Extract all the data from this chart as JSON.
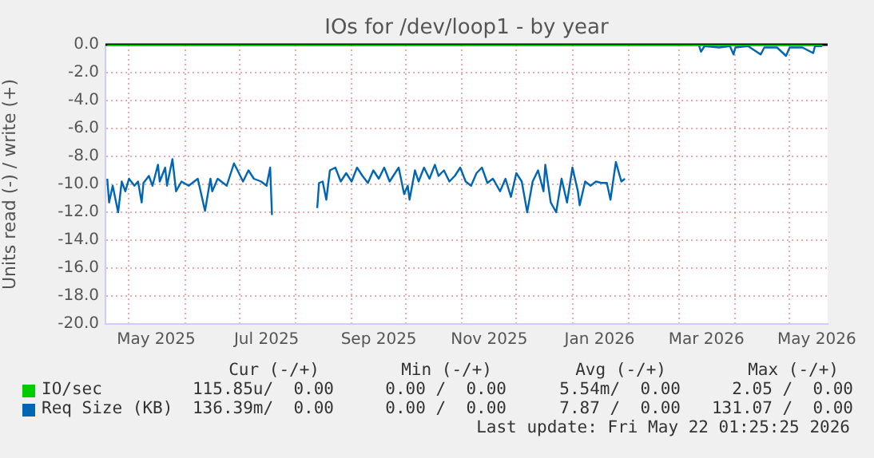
{
  "chart_data": {
    "type": "line",
    "title": "IOs for /dev/loop1 - by year",
    "ylabel": "Units read (-) / write (+)",
    "xlim": [
      "2025-04-18",
      "2026-05-22"
    ],
    "xticks": [
      {
        "value": "2025-05-01",
        "label": null
      },
      {
        "value": "2025-05-16",
        "label": "May 2025"
      },
      {
        "value": "2025-06-01",
        "label": null
      },
      {
        "value": "2025-07-01",
        "label": null
      },
      {
        "value": "2025-07-16",
        "label": "Jul 2025"
      },
      {
        "value": "2025-08-01",
        "label": null
      },
      {
        "value": "2025-09-01",
        "label": null
      },
      {
        "value": "2025-09-16",
        "label": "Sep 2025"
      },
      {
        "value": "2025-10-01",
        "label": null
      },
      {
        "value": "2025-11-01",
        "label": null
      },
      {
        "value": "2025-11-16",
        "label": "Nov 2025"
      },
      {
        "value": "2025-12-01",
        "label": null
      },
      {
        "value": "2026-01-01",
        "label": null
      },
      {
        "value": "2026-01-16",
        "label": "Jan 2026"
      },
      {
        "value": "2026-02-01",
        "label": null
      },
      {
        "value": "2026-03-01",
        "label": null
      },
      {
        "value": "2026-03-16",
        "label": "Mar 2026"
      },
      {
        "value": "2026-04-01",
        "label": null
      },
      {
        "value": "2026-05-01",
        "label": null
      },
      {
        "value": "2026-05-16",
        "label": "May 2026"
      }
    ],
    "ylim": [
      -20,
      0
    ],
    "yticks": [
      {
        "value": 0,
        "label": "0.0"
      },
      {
        "value": -2,
        "label": "-2.0"
      },
      {
        "value": -4,
        "label": "-4.0"
      },
      {
        "value": -6,
        "label": "-6.0"
      },
      {
        "value": -8,
        "label": "-8.0"
      },
      {
        "value": -10,
        "label": "-10.0"
      },
      {
        "value": -12,
        "label": "-12.0"
      },
      {
        "value": -14,
        "label": "-14.0"
      },
      {
        "value": -16,
        "label": "-16.0"
      },
      {
        "value": -18,
        "label": "-18.0"
      },
      {
        "value": -20,
        "label": "-20.0"
      }
    ],
    "grid": true,
    "legend": "bottom",
    "marker": "none",
    "line_style": "solid",
    "ref_lines": [
      {
        "axis": "y",
        "value": 0,
        "color": "#000000"
      }
    ],
    "series": [
      {
        "name": "IO/sec",
        "color": "#00cc00",
        "x": [
          "2025-04-19",
          "2026-05-19"
        ],
        "values": [
          0,
          0
        ]
      },
      {
        "name": "Req Size (KB)",
        "color": "#0066b3",
        "x": [
          "2025-04-19",
          "2025-04-20",
          "2025-04-22",
          "2025-04-25",
          "2025-04-27",
          "2025-04-29",
          "2025-05-01",
          "2025-05-04",
          "2025-05-06",
          "2025-05-08",
          "2025-05-09",
          "2025-05-12",
          "2025-05-14",
          "2025-05-17",
          "2025-05-18",
          "2025-05-21",
          "2025-05-22",
          "2025-05-25",
          "2025-05-27",
          "2025-05-30",
          "2025-06-03",
          "2025-06-08",
          "2025-06-12",
          "2025-06-15",
          "2025-06-16",
          "2025-06-19",
          "2025-06-24",
          "2025-06-28",
          "2025-06-30",
          "2025-07-03",
          "2025-07-06",
          "2025-07-09",
          "2025-07-13",
          "2025-07-16",
          "2025-07-18",
          "2025-07-19",
          "2025-08-01",
          "2025-08-13",
          "2025-08-14",
          "2025-08-16",
          "2025-08-18",
          "2025-08-20",
          "2025-08-23",
          "2025-08-26",
          "2025-08-29",
          "2025-09-01",
          "2025-09-04",
          "2025-09-07",
          "2025-09-10",
          "2025-09-13",
          "2025-09-16",
          "2025-09-19",
          "2025-09-22",
          "2025-09-25",
          "2025-09-27",
          "2025-09-30",
          "2025-10-02",
          "2025-10-03",
          "2025-10-06",
          "2025-10-08",
          "2025-10-11",
          "2025-10-14",
          "2025-10-17",
          "2025-10-19",
          "2025-10-22",
          "2025-10-25",
          "2025-10-28",
          "2025-10-31",
          "2025-11-03",
          "2025-11-06",
          "2025-11-09",
          "2025-11-12",
          "2025-11-15",
          "2025-11-18",
          "2025-11-19",
          "2025-11-22",
          "2025-11-25",
          "2025-11-28",
          "2025-12-01",
          "2025-12-04",
          "2025-12-07",
          "2025-12-10",
          "2025-12-13",
          "2025-12-16",
          "2025-12-17",
          "2025-12-20",
          "2025-12-23",
          "2025-12-26",
          "2025-12-29",
          "2026-01-01",
          "2026-01-04",
          "2026-01-05",
          "2026-01-08",
          "2026-01-11",
          "2026-01-14",
          "2026-01-17",
          "2026-01-20",
          "2026-01-22",
          "2026-01-25",
          "2026-01-28",
          "2026-01-30",
          "2026-02-15",
          "2026-03-12",
          "2026-03-13",
          "2026-03-15",
          "2026-03-23",
          "2026-03-29",
          "2026-03-31",
          "2026-04-01",
          "2026-04-08",
          "2026-04-15",
          "2026-04-17",
          "2026-04-24",
          "2026-04-29",
          "2026-05-01",
          "2026-05-08",
          "2026-05-14",
          "2026-05-15",
          "2026-05-19"
        ],
        "values": [
          -9.6,
          -11.3,
          -10.1,
          -12.0,
          -9.8,
          -10.5,
          -9.6,
          -10.1,
          -9.8,
          -11.3,
          -9.9,
          -9.4,
          -10.1,
          -8.6,
          -9.8,
          -8.8,
          -10.1,
          -8.2,
          -10.5,
          -9.8,
          -10.1,
          -9.6,
          -11.9,
          -9.6,
          -10.5,
          -9.6,
          -10.1,
          -8.5,
          -9.0,
          -9.8,
          -9.0,
          -9.6,
          -9.8,
          -10.1,
          -8.8,
          -12.2,
          null,
          -11.7,
          -9.9,
          -9.8,
          -11.1,
          -9.0,
          -8.8,
          -9.8,
          -9.2,
          -9.8,
          -8.8,
          -9.4,
          -9.9,
          -9.0,
          -9.6,
          -8.8,
          -9.8,
          -9.2,
          -8.8,
          -10.7,
          -10.1,
          -11.1,
          -9.0,
          -9.8,
          -8.8,
          -9.6,
          -8.6,
          -9.4,
          -9.0,
          -9.8,
          -9.4,
          -8.8,
          -9.8,
          -10.1,
          -9.2,
          -8.8,
          -9.9,
          -9.6,
          -9.8,
          -10.5,
          -9.6,
          -10.9,
          -9.2,
          -9.8,
          -12.0,
          -9.8,
          -9.0,
          -10.5,
          -8.6,
          -11.3,
          -12.0,
          -9.6,
          -11.3,
          -8.8,
          -10.5,
          -11.5,
          -9.8,
          -10.1,
          -9.8,
          -9.9,
          -9.9,
          -11.1,
          -8.4,
          -9.8,
          -9.6,
          null,
          -0.1,
          -0.5,
          -0.1,
          -0.2,
          -0.1,
          -0.7,
          -0.2,
          -0.1,
          -0.7,
          -0.2,
          -0.2,
          -0.8,
          -0.2,
          -0.2,
          -0.6,
          -0.1,
          -0.1
        ]
      }
    ],
    "annotations": [
      "Cur (-/+)",
      "Min (-/+)",
      "Avg (-/+)",
      "Max (-/+)",
      "115.85u/  0.00",
      "0.00 /  0.00",
      "5.54m/  0.00",
      "2.05 /  0.00",
      "136.39m/  0.00",
      "0.00 /  0.00",
      "7.87 /  0.00",
      "131.07 /  0.00",
      "Last update: Fri May 22 01:25:25 2026"
    ]
  }
}
